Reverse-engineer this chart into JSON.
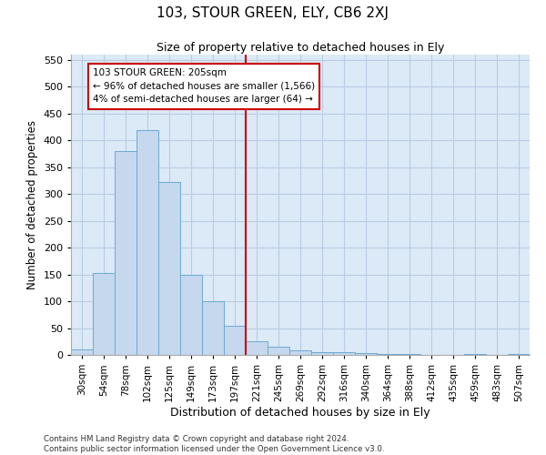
{
  "title": "103, STOUR GREEN, ELY, CB6 2XJ",
  "subtitle": "Size of property relative to detached houses in Ely",
  "xlabel": "Distribution of detached houses by size in Ely",
  "ylabel": "Number of detached properties",
  "footnote1": "Contains HM Land Registry data © Crown copyright and database right 2024.",
  "footnote2": "Contains public sector information licensed under the Open Government Licence v3.0.",
  "annotation_line1": "103 STOUR GREEN: 205sqm",
  "annotation_line2": "← 96% of detached houses are smaller (1,566)",
  "annotation_line3": "4% of semi-detached houses are larger (64) →",
  "bar_color": "#c5d8ee",
  "bar_edge_color": "#6aaad4",
  "vline_color": "#cc0000",
  "annotation_box_color": "#cc0000",
  "grid_color": "#b8cce4",
  "background_color": "#dce9f7",
  "bins": [
    "30sqm",
    "54sqm",
    "78sqm",
    "102sqm",
    "125sqm",
    "149sqm",
    "173sqm",
    "197sqm",
    "221sqm",
    "245sqm",
    "269sqm",
    "292sqm",
    "316sqm",
    "340sqm",
    "364sqm",
    "388sqm",
    "412sqm",
    "435sqm",
    "459sqm",
    "483sqm",
    "507sqm"
  ],
  "values": [
    10,
    152,
    380,
    420,
    323,
    150,
    100,
    55,
    25,
    15,
    8,
    5,
    5,
    3,
    1,
    1,
    0,
    0,
    1,
    0,
    1
  ],
  "vline_x": 7.5,
  "ylim": [
    0,
    560
  ],
  "yticks": [
    0,
    50,
    100,
    150,
    200,
    250,
    300,
    350,
    400,
    450,
    500,
    550
  ],
  "figsize": [
    6.0,
    5.0
  ],
  "dpi": 100
}
